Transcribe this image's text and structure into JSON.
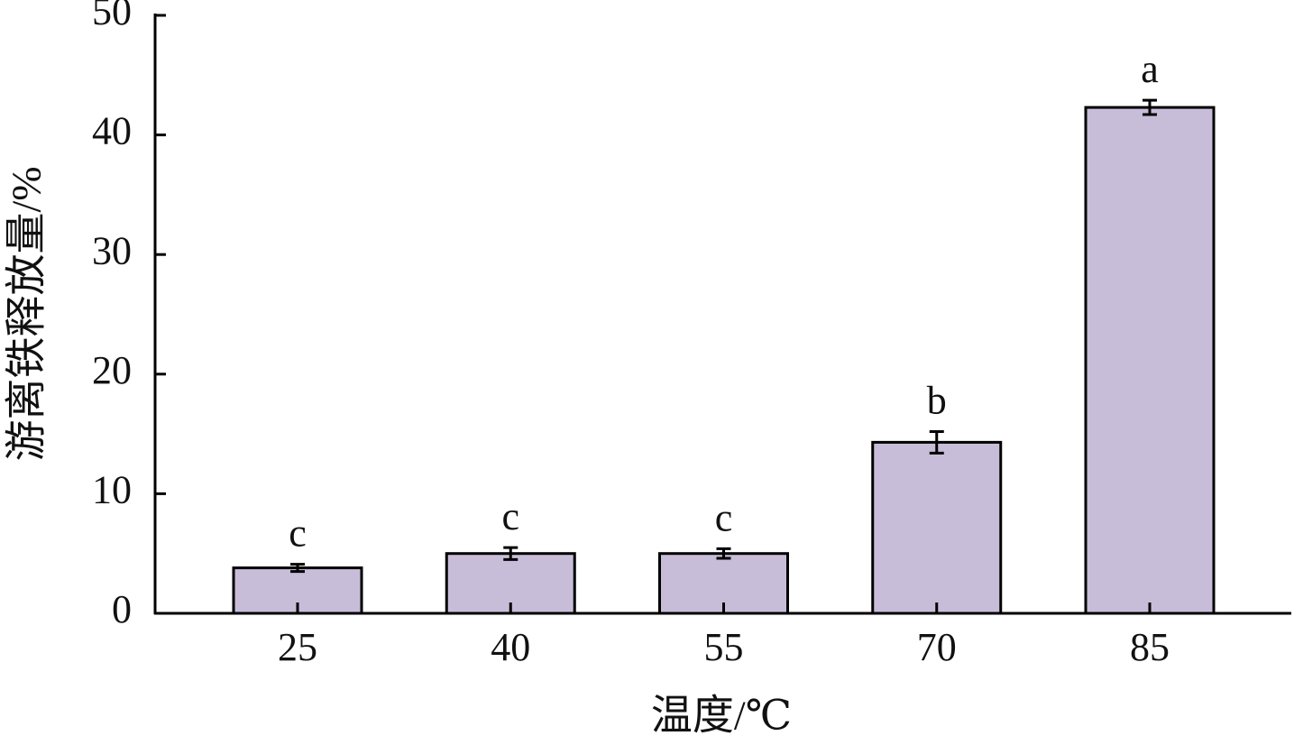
{
  "chart_data": {
    "type": "bar",
    "x_label": "温度/℃",
    "y_label": "游离铁释放量/%",
    "categories": [
      "25",
      "40",
      "55",
      "70",
      "85"
    ],
    "values": [
      3.8,
      5.0,
      5.0,
      14.3,
      42.3
    ],
    "errors": [
      0.3,
      0.5,
      0.4,
      0.9,
      0.6
    ],
    "letters": [
      "c",
      "c",
      "c",
      "b",
      "a"
    ],
    "color": "#c8bdd9",
    "ylim": [
      0,
      50
    ],
    "yticks": [
      0,
      10,
      20,
      30,
      40,
      50
    ]
  }
}
